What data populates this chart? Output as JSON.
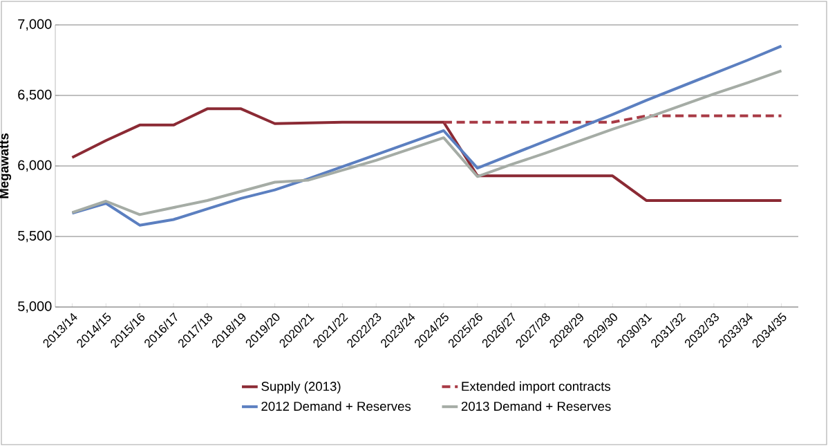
{
  "chart_data": {
    "type": "line",
    "ylabel": "Megawatts",
    "categories": [
      "2013/14",
      "2014/15",
      "2015/16",
      "2016/17",
      "2017/18",
      "2018/19",
      "2019/20",
      "2020/21",
      "2021/22",
      "2022/23",
      "2023/24",
      "2024/25",
      "2025/26",
      "2026/27",
      "2027/28",
      "2028/29",
      "2029/30",
      "2030/31",
      "2031/32",
      "2032/33",
      "2033/34",
      "2034/35"
    ],
    "series": [
      {
        "name": "Supply (2013)",
        "color": "#8b2a34",
        "line_style": "solid",
        "values": [
          6060,
          6180,
          6290,
          6290,
          6405,
          6405,
          6300,
          6305,
          6310,
          6310,
          6310,
          6310,
          5930,
          5930,
          5930,
          5930,
          5930,
          5755,
          5755,
          5755,
          5755,
          5755
        ]
      },
      {
        "name": "Extended import contracts",
        "color": "#a83a45",
        "line_style": "dashed",
        "values": [
          null,
          null,
          null,
          null,
          null,
          null,
          null,
          null,
          null,
          null,
          null,
          6310,
          6310,
          6310,
          6310,
          6310,
          6310,
          6355,
          6355,
          6355,
          6355,
          6355
        ]
      },
      {
        "name": "2012 Demand + Reserves",
        "color": "#5b7fc0",
        "line_style": "solid",
        "values": [
          5665,
          5735,
          5580,
          5620,
          5695,
          5770,
          5830,
          5910,
          5995,
          6080,
          6165,
          6250,
          5985,
          6080,
          6175,
          6270,
          6365,
          6465,
          6560,
          6655,
          6750,
          6850
        ]
      },
      {
        "name": "2013 Demand + Reserves",
        "color": "#a5aca5",
        "line_style": "solid",
        "values": [
          5670,
          5750,
          5655,
          5705,
          5755,
          5820,
          5885,
          5900,
          5970,
          6040,
          6120,
          6200,
          5925,
          6010,
          6090,
          6175,
          6260,
          6340,
          6425,
          6510,
          6590,
          6675
        ]
      }
    ],
    "ylim": [
      5000,
      7000
    ],
    "yticks": [
      {
        "value": 5000,
        "label": "5,000"
      },
      {
        "value": 5500,
        "label": "5,500"
      },
      {
        "value": 6000,
        "label": "6,000"
      },
      {
        "value": 6500,
        "label": "6,500"
      },
      {
        "value": 7000,
        "label": "7,000"
      }
    ],
    "grid": "y",
    "legend": "bottom",
    "marker": "none"
  }
}
